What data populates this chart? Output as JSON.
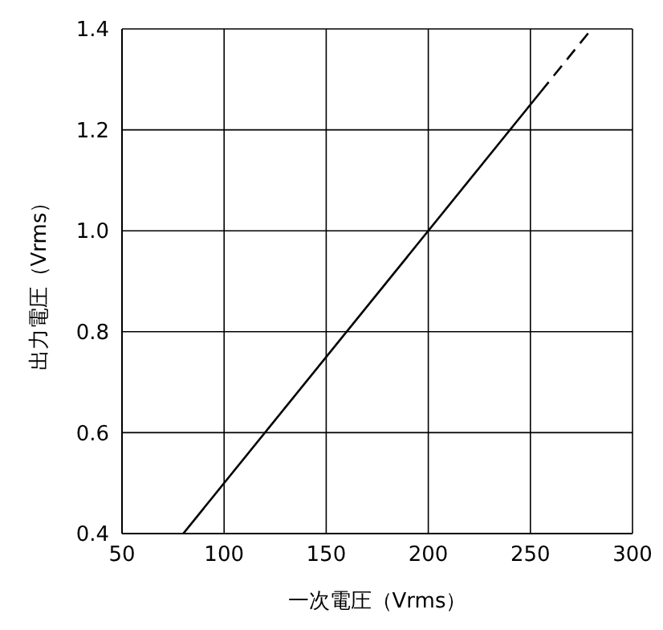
{
  "chart_data": {
    "type": "line",
    "xlabel": "一次電圧（Vrms）",
    "ylabel": "出力電圧（Vrms）",
    "xlim": [
      50,
      300
    ],
    "xticks": [
      50,
      100,
      150,
      200,
      250,
      300
    ],
    "ylim": [
      0.4,
      1.4
    ],
    "yticks": [
      {
        "value": 0.4,
        "label": "0.4"
      },
      {
        "value": 0.6,
        "label": "0.6"
      },
      {
        "value": 0.8,
        "label": "0.8"
      },
      {
        "value": 1.0,
        "label": "1.0"
      },
      {
        "value": 1.2,
        "label": "1.2"
      },
      {
        "value": 1.4,
        "label": "1.4"
      }
    ],
    "grid": true,
    "marker": "none",
    "series": [
      {
        "color": "#000000",
        "line_style": "solid",
        "x": [
          80,
          255
        ],
        "values": [
          0.4,
          1.275
        ]
      },
      {
        "color": "#000000",
        "line_style": "dashed",
        "x": [
          255,
          280
        ],
        "values": [
          1.275,
          1.4
        ]
      }
    ]
  }
}
